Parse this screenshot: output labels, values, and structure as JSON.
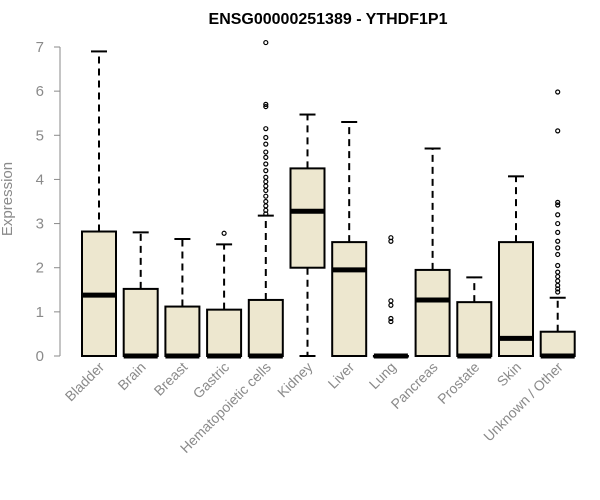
{
  "chart_data": {
    "type": "boxplot",
    "title": "ENSG00000251389 - YTHDF1P1",
    "ylabel": "Expression",
    "ylim": [
      0,
      7
    ],
    "yticks": [
      0,
      1,
      2,
      3,
      4,
      5,
      6,
      7
    ],
    "colors": {
      "box_fill": "#ede7cf",
      "stroke": "#000000",
      "axis": "#8a8a8a"
    },
    "categories": [
      "Bladder",
      "Brain",
      "Breast",
      "Gastric",
      "Hematopoietic cells",
      "Kidney",
      "Liver",
      "Lung",
      "Pancreas",
      "Prostate",
      "Skin",
      "Unknown / Other"
    ],
    "boxes": [
      {
        "min": 0,
        "q1": 0,
        "median": 1.38,
        "q3": 2.82,
        "max": 6.9,
        "outliers": []
      },
      {
        "min": 0,
        "q1": 0,
        "median": 0,
        "q3": 1.52,
        "max": 2.8,
        "outliers": []
      },
      {
        "min": 0,
        "q1": 0,
        "median": 0,
        "q3": 1.12,
        "max": 2.65,
        "outliers": []
      },
      {
        "min": 0,
        "q1": 0,
        "median": 0,
        "q3": 1.05,
        "max": 2.53,
        "outliers": [
          2.78
        ]
      },
      {
        "min": 0,
        "q1": 0,
        "median": 0,
        "q3": 1.27,
        "max": 3.18,
        "outliers": [
          3.22,
          3.3,
          3.4,
          3.5,
          3.62,
          3.75,
          3.85,
          3.95,
          4.05,
          4.2,
          4.35,
          4.5,
          4.62,
          4.8,
          4.95,
          5.15,
          5.65,
          5.7,
          7.1
        ]
      },
      {
        "min": 0,
        "q1": 2.0,
        "median": 3.28,
        "q3": 4.25,
        "max": 5.47,
        "outliers": []
      },
      {
        "min": 0,
        "q1": 0,
        "median": 1.95,
        "q3": 2.58,
        "max": 5.3,
        "outliers": []
      },
      {
        "min": 0,
        "q1": 0,
        "median": 0,
        "q3": 0,
        "max": 0,
        "outliers": [
          0.78,
          0.85,
          1.15,
          1.25,
          2.6,
          2.68
        ]
      },
      {
        "min": 0,
        "q1": 0,
        "median": 1.27,
        "q3": 1.95,
        "max": 4.7,
        "outliers": []
      },
      {
        "min": 0,
        "q1": 0,
        "median": 0,
        "q3": 1.22,
        "max": 1.78,
        "outliers": []
      },
      {
        "min": 0,
        "q1": 0,
        "median": 0.4,
        "q3": 2.58,
        "max": 4.07,
        "outliers": []
      },
      {
        "min": 0,
        "q1": 0,
        "median": 0,
        "q3": 0.55,
        "max": 1.32,
        "outliers": [
          1.45,
          1.52,
          1.6,
          1.7,
          1.8,
          1.9,
          2.05,
          2.3,
          2.45,
          2.6,
          2.8,
          3.0,
          3.2,
          3.42,
          3.48,
          5.1,
          5.98
        ]
      }
    ]
  }
}
